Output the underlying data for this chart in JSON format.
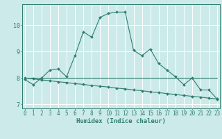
{
  "title": "",
  "xlabel": "Humidex (Indice chaleur)",
  "bg_color": "#cceaea",
  "line_color": "#2e7d6e",
  "grid_color": "#ffffff",
  "x": [
    0,
    1,
    2,
    3,
    4,
    5,
    6,
    7,
    8,
    9,
    10,
    11,
    12,
    13,
    14,
    15,
    16,
    17,
    18,
    19,
    20,
    21,
    22,
    23
  ],
  "line1": [
    7.95,
    7.75,
    8.0,
    8.3,
    8.35,
    8.05,
    8.85,
    9.75,
    9.55,
    10.3,
    10.45,
    10.5,
    10.5,
    9.05,
    8.85,
    9.1,
    8.55,
    8.3,
    8.05,
    7.75,
    8.0,
    7.55,
    7.55,
    7.2
  ],
  "line2": [
    8.0,
    8.0,
    8.0,
    8.0,
    8.0,
    8.0,
    8.0,
    8.0,
    8.0,
    8.0,
    8.0,
    8.0,
    8.0,
    8.0,
    8.0,
    8.0,
    8.0,
    8.0,
    8.0,
    8.0,
    8.0,
    8.0,
    8.0,
    8.0
  ],
  "line3": [
    8.0,
    7.97,
    7.93,
    7.9,
    7.86,
    7.83,
    7.79,
    7.76,
    7.72,
    7.69,
    7.66,
    7.62,
    7.59,
    7.55,
    7.52,
    7.48,
    7.45,
    7.41,
    7.38,
    7.34,
    7.31,
    7.28,
    7.24,
    7.21
  ],
  "ylim": [
    6.85,
    10.8
  ],
  "yticks": [
    7,
    8,
    9,
    10
  ],
  "xticks": [
    0,
    1,
    2,
    3,
    4,
    5,
    6,
    7,
    8,
    9,
    10,
    11,
    12,
    13,
    14,
    15,
    16,
    17,
    18,
    19,
    20,
    21,
    22,
    23
  ],
  "tick_fontsize": 5.5,
  "xlabel_fontsize": 6.5
}
